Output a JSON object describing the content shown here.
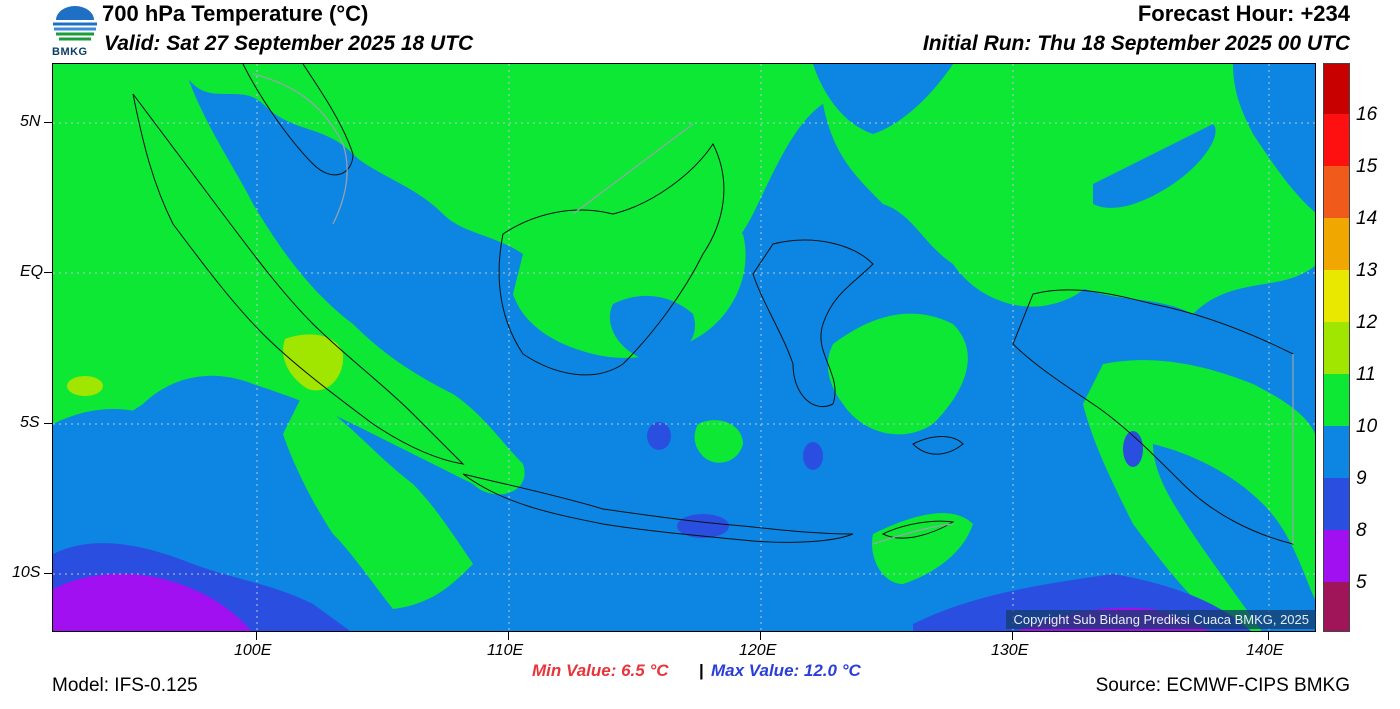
{
  "header": {
    "title": "700 hPa Temperature (°C)",
    "valid": "Valid: Sat 27 September 2025 18 UTC",
    "forecast_hour": "Forecast Hour: +234",
    "initial_run": "Initial Run: Thu 18 September 2025 00 UTC",
    "logo_text": "BMKG"
  },
  "map": {
    "lat_labels": [
      "5N",
      "EQ",
      "5S",
      "10S"
    ],
    "lon_labels": [
      "100E",
      "110E",
      "120E",
      "130E",
      "140E"
    ],
    "copyright": "Copyright Sub Bidang Prediksi Cuaca BMKG, 2025"
  },
  "colorbar": {
    "labels": [
      "16",
      "15",
      "14",
      "13",
      "12",
      "11",
      "10",
      "9",
      "8",
      "5"
    ],
    "colors": [
      "#c80000",
      "#ff1010",
      "#f05a1a",
      "#f0a800",
      "#e8e800",
      "#a0e600",
      "#0ce834",
      "#0c86e2",
      "#2a4fe0",
      "#a010f0",
      "#a0145a"
    ]
  },
  "footer": {
    "min_value": "Min Value: 6.5 °C",
    "separator": "|",
    "max_value": "Max Value: 12.0 °C",
    "model": "Model: IFS-0.125",
    "source": "Source: ECMWF-CIPS BMKG"
  }
}
